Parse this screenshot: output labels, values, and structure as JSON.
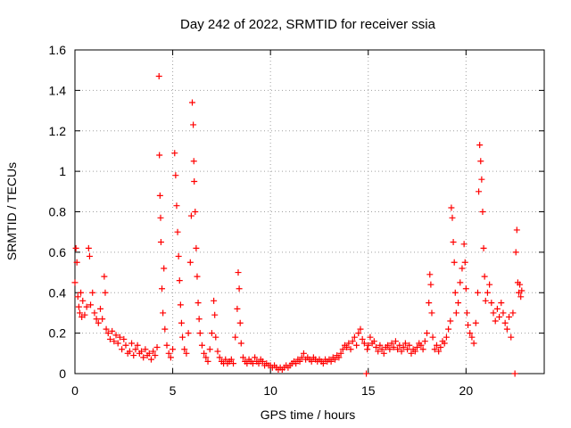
{
  "chart_data": {
    "type": "scatter",
    "title": "Day 242 of 2022, SRMTID for receiver ssia",
    "xlabel": "GPS time / hours",
    "ylabel": "SRMTID / TECUs",
    "xlim": [
      0,
      24
    ],
    "ylim": [
      0,
      1.6
    ],
    "xticks": [
      0,
      5,
      10,
      15,
      20
    ],
    "xtick_labels": [
      "0",
      "5",
      "10",
      "15",
      "20"
    ],
    "yticks": [
      0,
      0.2,
      0.4,
      0.6,
      0.8,
      1.0,
      1.2,
      1.4,
      1.6
    ],
    "ytick_labels": [
      "0",
      "0.2",
      "0.4",
      "0.6",
      "0.8",
      "1",
      "1.2",
      "1.4",
      "1.6"
    ],
    "grid": true,
    "marker": "+",
    "color": "#ff0000",
    "series": [
      {
        "name": "SRMTID",
        "points": [
          [
            0.0,
            0.45
          ],
          [
            0.05,
            0.62
          ],
          [
            0.1,
            0.55
          ],
          [
            0.15,
            0.38
          ],
          [
            0.2,
            0.33
          ],
          [
            0.25,
            0.3
          ],
          [
            0.3,
            0.4
          ],
          [
            0.35,
            0.28
          ],
          [
            0.4,
            0.36
          ],
          [
            0.5,
            0.29
          ],
          [
            0.6,
            0.33
          ],
          [
            0.7,
            0.62
          ],
          [
            0.75,
            0.58
          ],
          [
            0.8,
            0.34
          ],
          [
            0.9,
            0.4
          ],
          [
            1.0,
            0.3
          ],
          [
            1.1,
            0.27
          ],
          [
            1.2,
            0.25
          ],
          [
            1.3,
            0.32
          ],
          [
            1.4,
            0.27
          ],
          [
            1.5,
            0.48
          ],
          [
            1.55,
            0.4
          ],
          [
            1.6,
            0.22
          ],
          [
            1.7,
            0.2
          ],
          [
            1.8,
            0.17
          ],
          [
            1.9,
            0.21
          ],
          [
            2.0,
            0.16
          ],
          [
            2.1,
            0.19
          ],
          [
            2.2,
            0.15
          ],
          [
            2.3,
            0.18
          ],
          [
            2.4,
            0.12
          ],
          [
            2.5,
            0.17
          ],
          [
            2.6,
            0.14
          ],
          [
            2.7,
            0.1
          ],
          [
            2.8,
            0.11
          ],
          [
            2.9,
            0.15
          ],
          [
            3.0,
            0.09
          ],
          [
            3.1,
            0.12
          ],
          [
            3.2,
            0.14
          ],
          [
            3.3,
            0.1
          ],
          [
            3.4,
            0.11
          ],
          [
            3.5,
            0.08
          ],
          [
            3.6,
            0.12
          ],
          [
            3.7,
            0.09
          ],
          [
            3.8,
            0.1
          ],
          [
            3.9,
            0.07
          ],
          [
            4.0,
            0.11
          ],
          [
            4.1,
            0.09
          ],
          [
            4.2,
            0.13
          ],
          [
            4.3,
            1.47
          ],
          [
            4.32,
            1.08
          ],
          [
            4.35,
            0.88
          ],
          [
            4.38,
            0.77
          ],
          [
            4.4,
            0.65
          ],
          [
            4.45,
            0.42
          ],
          [
            4.5,
            0.3
          ],
          [
            4.55,
            0.52
          ],
          [
            4.6,
            0.22
          ],
          [
            4.7,
            0.14
          ],
          [
            4.8,
            0.1
          ],
          [
            4.9,
            0.08
          ],
          [
            5.0,
            0.12
          ],
          [
            5.1,
            1.09
          ],
          [
            5.15,
            0.98
          ],
          [
            5.2,
            0.83
          ],
          [
            5.25,
            0.7
          ],
          [
            5.3,
            0.58
          ],
          [
            5.35,
            0.46
          ],
          [
            5.4,
            0.34
          ],
          [
            5.45,
            0.25
          ],
          [
            5.5,
            0.18
          ],
          [
            5.6,
            0.12
          ],
          [
            5.7,
            0.1
          ],
          [
            5.8,
            0.2
          ],
          [
            5.9,
            0.55
          ],
          [
            5.95,
            0.78
          ],
          [
            6.0,
            1.34
          ],
          [
            6.05,
            1.23
          ],
          [
            6.08,
            1.05
          ],
          [
            6.1,
            0.95
          ],
          [
            6.15,
            0.8
          ],
          [
            6.2,
            0.62
          ],
          [
            6.25,
            0.48
          ],
          [
            6.3,
            0.35
          ],
          [
            6.35,
            0.27
          ],
          [
            6.4,
            0.2
          ],
          [
            6.5,
            0.14
          ],
          [
            6.6,
            0.1
          ],
          [
            6.7,
            0.08
          ],
          [
            6.8,
            0.06
          ],
          [
            6.9,
            0.12
          ],
          [
            7.0,
            0.2
          ],
          [
            7.1,
            0.36
          ],
          [
            7.15,
            0.29
          ],
          [
            7.2,
            0.18
          ],
          [
            7.3,
            0.11
          ],
          [
            7.4,
            0.08
          ],
          [
            7.5,
            0.06
          ],
          [
            7.6,
            0.05
          ],
          [
            7.7,
            0.07
          ],
          [
            7.8,
            0.05
          ],
          [
            7.9,
            0.06
          ],
          [
            8.0,
            0.07
          ],
          [
            8.1,
            0.05
          ],
          [
            8.2,
            0.18
          ],
          [
            8.3,
            0.32
          ],
          [
            8.35,
            0.5
          ],
          [
            8.4,
            0.42
          ],
          [
            8.45,
            0.25
          ],
          [
            8.5,
            0.15
          ],
          [
            8.6,
            0.08
          ],
          [
            8.7,
            0.06
          ],
          [
            8.8,
            0.05
          ],
          [
            8.9,
            0.07
          ],
          [
            9.0,
            0.06
          ],
          [
            9.1,
            0.05
          ],
          [
            9.2,
            0.08
          ],
          [
            9.3,
            0.06
          ],
          [
            9.4,
            0.05
          ],
          [
            9.5,
            0.07
          ],
          [
            9.6,
            0.06
          ],
          [
            9.7,
            0.04
          ],
          [
            9.8,
            0.05
          ],
          [
            9.9,
            0.04
          ],
          [
            10.0,
            0.04
          ],
          [
            10.1,
            0.03
          ],
          [
            10.2,
            0.04
          ],
          [
            10.3,
            0.03
          ],
          [
            10.4,
            0.02
          ],
          [
            10.5,
            0.03
          ],
          [
            10.6,
            0.02
          ],
          [
            10.7,
            0.03
          ],
          [
            10.8,
            0.04
          ],
          [
            10.9,
            0.03
          ],
          [
            11.0,
            0.04
          ],
          [
            11.1,
            0.05
          ],
          [
            11.2,
            0.06
          ],
          [
            11.3,
            0.05
          ],
          [
            11.4,
            0.07
          ],
          [
            11.5,
            0.06
          ],
          [
            11.6,
            0.08
          ],
          [
            11.7,
            0.1
          ],
          [
            11.8,
            0.07
          ],
          [
            11.9,
            0.08
          ],
          [
            12.0,
            0.07
          ],
          [
            12.1,
            0.06
          ],
          [
            12.2,
            0.08
          ],
          [
            12.3,
            0.07
          ],
          [
            12.4,
            0.06
          ],
          [
            12.5,
            0.07
          ],
          [
            12.6,
            0.06
          ],
          [
            12.7,
            0.05
          ],
          [
            12.8,
            0.07
          ],
          [
            12.9,
            0.06
          ],
          [
            13.0,
            0.07
          ],
          [
            13.1,
            0.06
          ],
          [
            13.2,
            0.08
          ],
          [
            13.3,
            0.07
          ],
          [
            13.4,
            0.09
          ],
          [
            13.5,
            0.08
          ],
          [
            13.6,
            0.1
          ],
          [
            13.7,
            0.12
          ],
          [
            13.8,
            0.14
          ],
          [
            13.9,
            0.13
          ],
          [
            14.0,
            0.15
          ],
          [
            14.1,
            0.12
          ],
          [
            14.2,
            0.16
          ],
          [
            14.3,
            0.18
          ],
          [
            14.4,
            0.14
          ],
          [
            14.5,
            0.2
          ],
          [
            14.6,
            0.22
          ],
          [
            14.7,
            0.17
          ],
          [
            14.8,
            0.15
          ],
          [
            14.9,
            0.0
          ],
          [
            14.95,
            0.12
          ],
          [
            15.0,
            0.14
          ],
          [
            15.1,
            0.18
          ],
          [
            15.2,
            0.15
          ],
          [
            15.3,
            0.16
          ],
          [
            15.4,
            0.13
          ],
          [
            15.5,
            0.11
          ],
          [
            15.6,
            0.14
          ],
          [
            15.7,
            0.12
          ],
          [
            15.8,
            0.1
          ],
          [
            15.9,
            0.13
          ],
          [
            16.0,
            0.14
          ],
          [
            16.1,
            0.12
          ],
          [
            16.2,
            0.15
          ],
          [
            16.3,
            0.13
          ],
          [
            16.4,
            0.16
          ],
          [
            16.5,
            0.12
          ],
          [
            16.6,
            0.14
          ],
          [
            16.7,
            0.11
          ],
          [
            16.8,
            0.13
          ],
          [
            16.9,
            0.15
          ],
          [
            17.0,
            0.12
          ],
          [
            17.1,
            0.14
          ],
          [
            17.2,
            0.1
          ],
          [
            17.3,
            0.12
          ],
          [
            17.4,
            0.11
          ],
          [
            17.5,
            0.13
          ],
          [
            17.6,
            0.15
          ],
          [
            17.7,
            0.14
          ],
          [
            17.8,
            0.12
          ],
          [
            17.9,
            0.16
          ],
          [
            18.0,
            0.2
          ],
          [
            18.1,
            0.35
          ],
          [
            18.15,
            0.49
          ],
          [
            18.2,
            0.44
          ],
          [
            18.25,
            0.3
          ],
          [
            18.3,
            0.18
          ],
          [
            18.4,
            0.12
          ],
          [
            18.5,
            0.14
          ],
          [
            18.6,
            0.11
          ],
          [
            18.7,
            0.13
          ],
          [
            18.8,
            0.16
          ],
          [
            18.9,
            0.15
          ],
          [
            19.0,
            0.18
          ],
          [
            19.1,
            0.22
          ],
          [
            19.2,
            0.26
          ],
          [
            19.25,
            0.82
          ],
          [
            19.3,
            0.77
          ],
          [
            19.35,
            0.65
          ],
          [
            19.4,
            0.55
          ],
          [
            19.45,
            0.4
          ],
          [
            19.5,
            0.3
          ],
          [
            19.6,
            0.35
          ],
          [
            19.7,
            0.45
          ],
          [
            19.8,
            0.52
          ],
          [
            19.9,
            0.64
          ],
          [
            19.95,
            0.55
          ],
          [
            20.0,
            0.42
          ],
          [
            20.05,
            0.3
          ],
          [
            20.1,
            0.24
          ],
          [
            20.2,
            0.2
          ],
          [
            20.3,
            0.18
          ],
          [
            20.4,
            0.15
          ],
          [
            20.5,
            0.25
          ],
          [
            20.6,
            0.4
          ],
          [
            20.65,
            0.9
          ],
          [
            20.7,
            1.13
          ],
          [
            20.75,
            1.05
          ],
          [
            20.8,
            0.96
          ],
          [
            20.85,
            0.8
          ],
          [
            20.9,
            0.62
          ],
          [
            20.95,
            0.48
          ],
          [
            21.0,
            0.36
          ],
          [
            21.1,
            0.4
          ],
          [
            21.2,
            0.44
          ],
          [
            21.3,
            0.35
          ],
          [
            21.4,
            0.3
          ],
          [
            21.5,
            0.26
          ],
          [
            21.6,
            0.32
          ],
          [
            21.7,
            0.28
          ],
          [
            21.8,
            0.35
          ],
          [
            21.9,
            0.3
          ],
          [
            22.0,
            0.25
          ],
          [
            22.1,
            0.22
          ],
          [
            22.2,
            0.28
          ],
          [
            22.3,
            0.18
          ],
          [
            22.4,
            0.3
          ],
          [
            22.5,
            0.0
          ],
          [
            22.55,
            0.6
          ],
          [
            22.6,
            0.71
          ],
          [
            22.65,
            0.45
          ],
          [
            22.7,
            0.4
          ],
          [
            22.75,
            0.44
          ],
          [
            22.8,
            0.38
          ],
          [
            22.85,
            0.41
          ]
        ]
      }
    ]
  }
}
